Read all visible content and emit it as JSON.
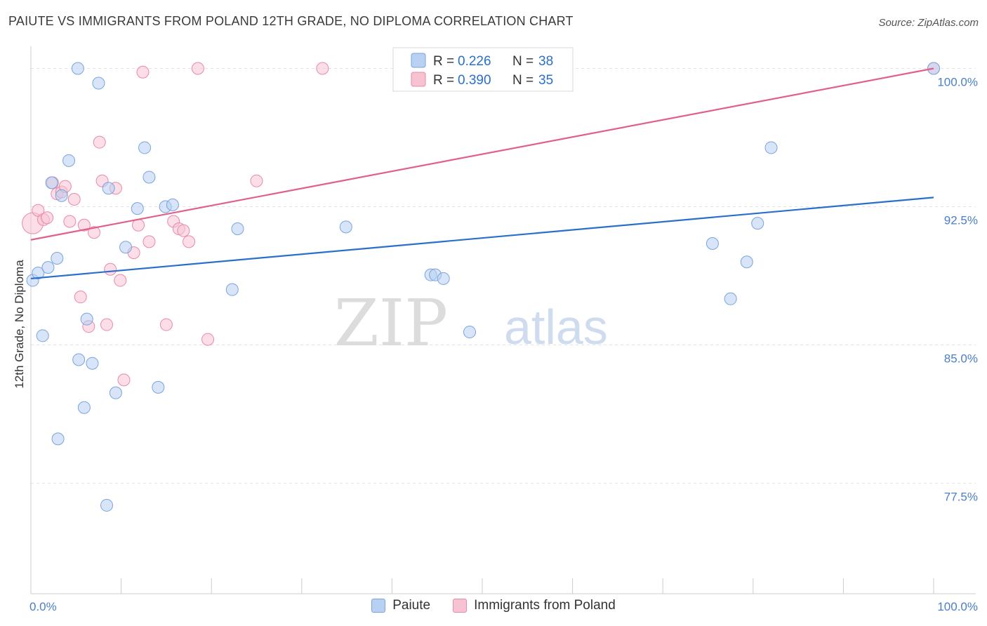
{
  "header": {
    "title": "PAIUTE VS IMMIGRANTS FROM POLAND 12TH GRADE, NO DIPLOMA CORRELATION CHART",
    "source": "Source: ZipAtlas.com"
  },
  "watermark": {
    "zip": "ZIP",
    "atlas": "atlas"
  },
  "colors": {
    "blue_fill": "#b8d0f2",
    "blue_stroke": "#7aa4dc",
    "blue_line": "#2a6fcc",
    "pink_fill": "#f7c3d3",
    "pink_stroke": "#e98aa8",
    "pink_line": "#e0608a",
    "tick_label": "#4a7fc9",
    "grid": "#e3e3e3"
  },
  "legend": {
    "rows": [
      {
        "r_label": "R =",
        "r_value": "0.226",
        "n_label": "N =",
        "n_value": "38"
      },
      {
        "r_label": "R =",
        "r_value": "0.390",
        "n_label": "N =",
        "n_value": "35"
      }
    ]
  },
  "chart_data": {
    "type": "scatter",
    "title": "PAIUTE VS IMMIGRANTS FROM POLAND 12TH GRADE, NO DIPLOMA CORRELATION CHART",
    "xlabel": "",
    "ylabel": "12th Grade, No Diploma",
    "xlim": [
      0,
      100
    ],
    "ylim": [
      71.5,
      101.2
    ],
    "x_tick_labels": [
      {
        "value": 0,
        "label": "0.0%"
      },
      {
        "value": 100,
        "label": "100.0%"
      }
    ],
    "y_tick_labels": [
      {
        "value": 100,
        "label": "100.0%"
      },
      {
        "value": 92.5,
        "label": "92.5%"
      },
      {
        "value": 85,
        "label": "85.0%"
      },
      {
        "value": 77.5,
        "label": "77.5%"
      }
    ],
    "grid": true,
    "legend_position": "top-center",
    "series": [
      {
        "name": "Paiute",
        "r": 0.226,
        "n": 38,
        "trend": [
          [
            0,
            88.6
          ],
          [
            100,
            93.0
          ]
        ],
        "points": [
          [
            0.2,
            88.5
          ],
          [
            0.8,
            88.9
          ],
          [
            1.3,
            85.5
          ],
          [
            1.9,
            89.2
          ],
          [
            2.3,
            93.8
          ],
          [
            2.9,
            89.7
          ],
          [
            3.4,
            93.1
          ],
          [
            4.2,
            95.0
          ],
          [
            5.2,
            100.0
          ],
          [
            5.3,
            84.2
          ],
          [
            5.9,
            81.6
          ],
          [
            6.2,
            86.4
          ],
          [
            6.8,
            84.0
          ],
          [
            7.5,
            99.2
          ],
          [
            8.4,
            76.3
          ],
          [
            8.6,
            93.5
          ],
          [
            9.4,
            82.4
          ],
          [
            10.5,
            90.3
          ],
          [
            11.8,
            92.4
          ],
          [
            12.6,
            95.7
          ],
          [
            13.1,
            94.1
          ],
          [
            14.1,
            82.7
          ],
          [
            14.9,
            92.5
          ],
          [
            15.7,
            92.6
          ],
          [
            22.3,
            88.0
          ],
          [
            22.9,
            91.3
          ],
          [
            34.9,
            91.4
          ],
          [
            44.3,
            88.8
          ],
          [
            44.8,
            88.8
          ],
          [
            45.7,
            88.6
          ],
          [
            48.6,
            85.7
          ],
          [
            75.5,
            90.5
          ],
          [
            77.5,
            87.5
          ],
          [
            79.3,
            89.5
          ],
          [
            80.5,
            91.6
          ],
          [
            82.0,
            95.7
          ],
          [
            100.0,
            100.0
          ],
          [
            3.0,
            79.9
          ]
        ]
      },
      {
        "name": "Immigrants from Poland",
        "r": 0.39,
        "n": 35,
        "trend": [
          [
            0,
            90.7
          ],
          [
            100,
            100.0
          ]
        ],
        "points": [
          [
            0.2,
            91.6
          ],
          [
            0.8,
            92.3
          ],
          [
            1.4,
            91.8
          ],
          [
            1.8,
            91.9
          ],
          [
            2.4,
            93.8
          ],
          [
            2.9,
            93.2
          ],
          [
            3.4,
            93.3
          ],
          [
            3.8,
            93.6
          ],
          [
            4.3,
            91.7
          ],
          [
            4.8,
            92.9
          ],
          [
            5.5,
            87.6
          ],
          [
            5.9,
            91.5
          ],
          [
            6.4,
            86.0
          ],
          [
            7.0,
            91.1
          ],
          [
            7.6,
            96.0
          ],
          [
            7.9,
            93.9
          ],
          [
            8.4,
            86.1
          ],
          [
            8.8,
            89.1
          ],
          [
            9.4,
            93.5
          ],
          [
            9.9,
            88.5
          ],
          [
            10.3,
            83.1
          ],
          [
            11.4,
            90.0
          ],
          [
            11.9,
            91.5
          ],
          [
            12.4,
            99.8
          ],
          [
            13.1,
            90.6
          ],
          [
            15.0,
            86.1
          ],
          [
            15.8,
            91.7
          ],
          [
            16.4,
            91.3
          ],
          [
            16.9,
            91.2
          ],
          [
            17.5,
            90.6
          ],
          [
            18.5,
            100.0
          ],
          [
            19.6,
            85.3
          ],
          [
            25.0,
            93.9
          ],
          [
            32.3,
            100.0
          ],
          [
            100.0,
            100.0
          ]
        ]
      }
    ]
  },
  "bottom_legend": {
    "items": [
      {
        "label": "Paiute"
      },
      {
        "label": "Immigrants from Poland"
      }
    ]
  }
}
